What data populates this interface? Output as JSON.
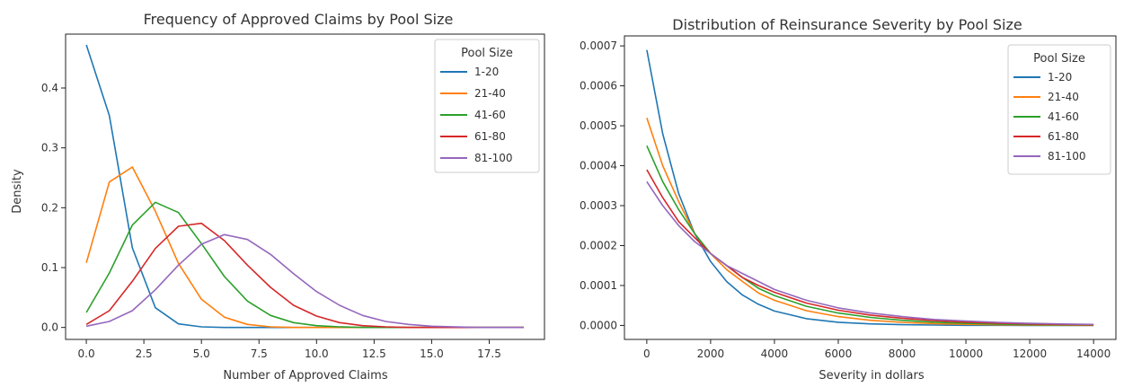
{
  "chart_data": [
    {
      "type": "line",
      "title": "Frequency of Approved Claims by Pool Size",
      "xlabel": "Number of Approved Claims",
      "ylabel": "Density",
      "xlim": [
        -0.9,
        19.9
      ],
      "ylim": [
        -0.02,
        0.49
      ],
      "xticks": [
        0,
        2.5,
        5,
        7.5,
        10,
        12.5,
        15,
        17.5
      ],
      "xtick_labels": [
        "0.0",
        "2.5",
        "5.0",
        "7.5",
        "10.0",
        "12.5",
        "15.0",
        "17.5"
      ],
      "yticks": [
        0,
        0.1,
        0.2,
        0.3,
        0.4
      ],
      "ytick_labels": [
        "0.0",
        "0.1",
        "0.2",
        "0.3",
        "0.4"
      ],
      "grid": false,
      "legend": {
        "title": "Pool Size",
        "placement": "top-right"
      },
      "x": [
        0,
        1,
        2,
        3,
        4,
        5,
        6,
        7,
        8,
        9,
        10,
        11,
        12,
        13,
        14,
        15,
        16,
        17,
        18,
        19
      ],
      "series": [
        {
          "name": "1-20",
          "color": "#1f77b4",
          "values": [
            0.472,
            0.354,
            0.133,
            0.033,
            0.006,
            0.001,
            0,
            0,
            0,
            0,
            0,
            0,
            0,
            0,
            0,
            0,
            0,
            0,
            0,
            0
          ]
        },
        {
          "name": "21-40",
          "color": "#ff7f0e",
          "values": [
            0.108,
            0.243,
            0.268,
            0.194,
            0.107,
            0.047,
            0.017,
            0.005,
            0.001,
            0,
            0,
            0,
            0,
            0,
            0,
            0,
            0,
            0,
            0,
            0
          ]
        },
        {
          "name": "41-60",
          "color": "#2ca02c",
          "values": [
            0.025,
            0.091,
            0.171,
            0.209,
            0.192,
            0.14,
            0.085,
            0.044,
            0.02,
            0.008,
            0.003,
            0.001,
            0,
            0,
            0,
            0,
            0,
            0,
            0,
            0
          ]
        },
        {
          "name": "61-80",
          "color": "#d62728",
          "values": [
            0.005,
            0.028,
            0.077,
            0.132,
            0.169,
            0.174,
            0.145,
            0.104,
            0.067,
            0.037,
            0.019,
            0.008,
            0.003,
            0.001,
            0,
            0,
            0,
            0,
            0,
            0
          ]
        },
        {
          "name": "81-100",
          "color": "#9467bd",
          "values": [
            0.002,
            0.01,
            0.028,
            0.063,
            0.104,
            0.139,
            0.155,
            0.147,
            0.122,
            0.09,
            0.06,
            0.037,
            0.02,
            0.01,
            0.005,
            0.002,
            0.001,
            0,
            0,
            0
          ]
        }
      ]
    },
    {
      "type": "line",
      "title": "Distribution of Reinsurance Severity by Pool Size",
      "xlabel": "Severity in dollars",
      "ylabel": "",
      "xlim": [
        -700,
        14700
      ],
      "ylim": [
        -3.5e-05,
        0.000725
      ],
      "xticks": [
        0,
        2000,
        4000,
        6000,
        8000,
        10000,
        12000,
        14000
      ],
      "xtick_labels": [
        "0",
        "2000",
        "4000",
        "6000",
        "8000",
        "10000",
        "12000",
        "14000"
      ],
      "yticks": [
        0,
        0.0001,
        0.0002,
        0.0003,
        0.0004,
        0.0005,
        0.0006,
        0.0007
      ],
      "ytick_labels": [
        "0.0000",
        "0.0001",
        "0.0002",
        "0.0003",
        "0.0004",
        "0.0005",
        "0.0006",
        "0.0007"
      ],
      "grid": false,
      "legend": {
        "title": "Pool Size",
        "placement": "top-right"
      },
      "x": [
        0,
        500,
        1000,
        1500,
        2000,
        2500,
        3000,
        3500,
        4000,
        5000,
        6000,
        7000,
        8000,
        9000,
        10000,
        11000,
        12000,
        13000,
        14000
      ],
      "series": [
        {
          "name": "1-20",
          "color": "#1f77b4",
          "values": [
            0.00069,
            0.00048,
            0.00033,
            0.00023,
            0.00016,
            0.00011,
            7.6e-05,
            5.3e-05,
            3.6e-05,
            1.7e-05,
            8e-06,
            3.8e-06,
            1.8e-06,
            9e-07,
            4e-07,
            2e-07,
            1e-07,
            0,
            0
          ]
        },
        {
          "name": "21-40",
          "color": "#ff7f0e",
          "values": [
            0.00052,
            0.0004,
            0.00031,
            0.00023,
            0.00018,
            0.00014,
            0.00011,
            8.1e-05,
            6.3e-05,
            3.7e-05,
            2.2e-05,
            1.3e-05,
            7.7e-06,
            4.5e-06,
            2.7e-06,
            1.6e-06,
            9e-07,
            5e-07,
            3e-07
          ]
        },
        {
          "name": "41-60",
          "color": "#2ca02c",
          "values": [
            0.00045,
            0.00036,
            0.00029,
            0.00023,
            0.00018,
            0.00015,
            0.00012,
            9.3e-05,
            7.5e-05,
            4.8e-05,
            3.1e-05,
            2e-05,
            1.3e-05,
            8.1e-06,
            5.2e-06,
            3.4e-06,
            2.2e-06,
            1.4e-06,
            9e-07
          ]
        },
        {
          "name": "61-80",
          "color": "#d62728",
          "values": [
            0.00039,
            0.00032,
            0.00026,
            0.00022,
            0.00018,
            0.00015,
            0.00012,
            0.0001,
            8.3e-05,
            5.6e-05,
            3.8e-05,
            2.6e-05,
            1.8e-05,
            1.2e-05,
            8.1e-06,
            5.5e-06,
            3.7e-06,
            2.5e-06,
            1.7e-06
          ]
        },
        {
          "name": "81-100",
          "color": "#9467bd",
          "values": [
            0.00036,
            0.0003,
            0.00025,
            0.00021,
            0.00018,
            0.00015,
            0.00013,
            0.00011,
            9e-05,
            6.3e-05,
            4.4e-05,
            3.1e-05,
            2.2e-05,
            1.5e-05,
            1.1e-05,
            7.6e-06,
            5.3e-06,
            3.7e-06,
            2.6e-06
          ]
        }
      ]
    }
  ]
}
